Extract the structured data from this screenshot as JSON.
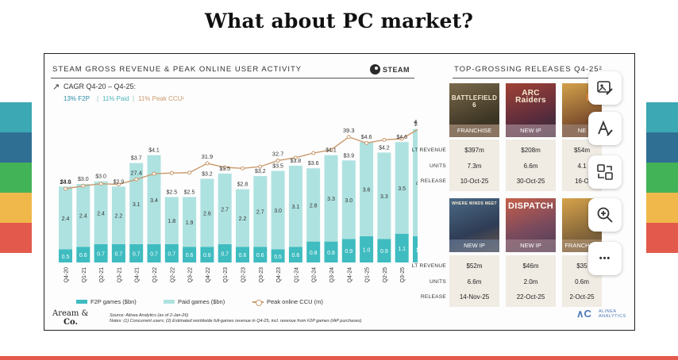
{
  "slide": {
    "title": "What about PC market?"
  },
  "left_panel": {
    "header": "STEAM GROSS REVENUE & PEAK ONLINE USER ACTIVITY",
    "steam_label": "STEAM",
    "cagr_title": "CAGR Q4-20 – Q4-25:",
    "cagr_f2p": "13% F2P",
    "cagr_sep1": "|",
    "cagr_paid": "11% Paid",
    "cagr_sep2": "|",
    "cagr_ccu": "11% Peak CCU¹",
    "legend": {
      "f2p": "F2P games ($bn)",
      "paid": "Paid games ($bn)",
      "ccu": "Peak online CCU (m)"
    },
    "source": "Source: Alinea Analytics (as of 2-Jan-26)",
    "notes": "Notes: (1) Concurrent users; (2) Estimated worldwide full-games revenue in Q4-25, incl. revenue from F2P games (IAP purchases)",
    "logo_aream_1": "Aream &",
    "logo_aream_2": "Co.",
    "logo_alinea_1": "ALINEA",
    "logo_alinea_2": "ANALYTICS"
  },
  "right_panel": {
    "header": "TOP-GROSSING RELEASES Q4-25²",
    "row_labels": [
      "LT REVENUE",
      "UNITS",
      "RELEASE"
    ],
    "row1": [
      {
        "title": "BATTLEFIELD 6",
        "tag": "FRANCHISE",
        "revenue": "$397m",
        "units": "7.3m",
        "release": "10-Oct-25"
      },
      {
        "title": "ARC Raiders",
        "tag": "NEW IP",
        "revenue": "$208m",
        "units": "6.6m",
        "release": "30-Oct-25"
      },
      {
        "title": "BU",
        "tag": "NE",
        "revenue": "$54m",
        "units": "4.1",
        "release": "16-O"
      }
    ],
    "row2": [
      {
        "title": "WHERE WINDS MEET",
        "tag": "NEW IP",
        "revenue": "$52m",
        "units": "6.6m",
        "release": "14-Nov-25"
      },
      {
        "title": "DISPATCH",
        "tag": "NEW IP",
        "revenue": "$46m",
        "units": "2.0m",
        "release": "22-Oct-25"
      },
      {
        "title": "",
        "tag": "FRANCHISE",
        "revenue": "$35",
        "units": "0.6m",
        "release": "2-Oct-25"
      }
    ]
  },
  "toolbar": {
    "image_icon": "image-edit-icon",
    "text_icon": "text-style-icon",
    "swap_icon": "swap-icon",
    "zoom_icon": "zoom-in-icon",
    "more_label": "•••"
  },
  "colors": {
    "f2p": "#3fbcc0",
    "paid": "#aee2e0",
    "ccu": "#c99a6e",
    "accent_red": "#e35a4c"
  },
  "chart_data": {
    "type": "bar",
    "stacked": true,
    "title": "STEAM GROSS REVENUE & PEAK ONLINE USER ACTIVITY",
    "categories": [
      "Q4-20",
      "Q1-21",
      "Q2-21",
      "Q3-21",
      "Q4-21",
      "Q1-22",
      "Q2-22",
      "Q3-22",
      "Q4-22",
      "Q1-23",
      "Q2-23",
      "Q3-23",
      "Q4-23",
      "Q1-24",
      "Q2-24",
      "Q3-24",
      "Q4-24",
      "Q1-25",
      "Q2-25",
      "Q3-25",
      "Q4-25"
    ],
    "series": [
      {
        "name": "F2P games ($bn)",
        "values": [
          0.5,
          0.6,
          0.7,
          0.7,
          0.7,
          0.7,
          0.7,
          0.6,
          0.6,
          0.7,
          0.6,
          0.6,
          0.5,
          0.6,
          0.8,
          0.8,
          0.9,
          1.0,
          0.9,
          1.1,
          1.0
        ]
      },
      {
        "name": "Paid games ($bn)",
        "values": [
          2.4,
          2.4,
          2.4,
          2.2,
          3.1,
          3.4,
          1.8,
          1.9,
          2.6,
          2.7,
          2.2,
          2.7,
          3.0,
          3.1,
          2.8,
          3.3,
          3.0,
          3.6,
          3.3,
          3.5,
          4.1
        ]
      }
    ],
    "totals": [
      "$3.0",
      "$3.0",
      "$3.0",
      "$2.9",
      "$3.7",
      "$4.1",
      "$2.5",
      "$2.5",
      "$3.2",
      "$3.5",
      "$2.8",
      "$3.2",
      "$3.5",
      "$3.8",
      "$3.6",
      "$4.1",
      "$3.9",
      "$4.6",
      "$4.2",
      "$4.6",
      "$5.1"
    ],
    "line": {
      "name": "Peak online CCU (m)",
      "values": [
        24.8,
        25.6,
        26.2,
        26.0,
        27.4,
        29.0,
        29.2,
        29.3,
        31.9,
        30.8,
        30.5,
        31.0,
        32.7,
        33.5,
        34.8,
        35.7,
        39.3,
        37.6,
        38.5,
        38.8,
        41.7
      ],
      "labels": {
        "0": "24.8",
        "4": "27.4",
        "8": "31.9",
        "12": "32.7",
        "16": "39.3",
        "20": "41.7"
      }
    },
    "xlabel": "",
    "ylabel": ""
  }
}
